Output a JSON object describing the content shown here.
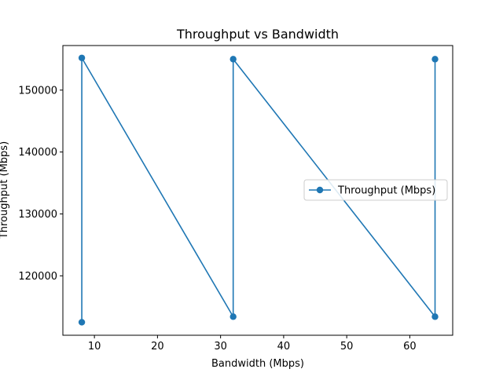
{
  "chart_data": {
    "type": "line",
    "title": "Throughput vs Bandwidth",
    "xlabel": "Bandwidth (Mbps)",
    "ylabel": "Throughput (Mbps)",
    "xlim": [
      5,
      66.8
    ],
    "ylim": [
      110400,
      157200
    ],
    "x_ticks": [
      10,
      20,
      30,
      40,
      50,
      60
    ],
    "y_ticks": [
      120000,
      130000,
      140000,
      150000
    ],
    "grid": false,
    "legend_position": "center-right",
    "marker": "circle",
    "series": [
      {
        "name": "Throughput (Mbps)",
        "color": "#1f77b4",
        "x": [
          8,
          8,
          32,
          32,
          64,
          64
        ],
        "y": [
          112500,
          155200,
          113400,
          155000,
          113400,
          155000
        ]
      }
    ]
  }
}
